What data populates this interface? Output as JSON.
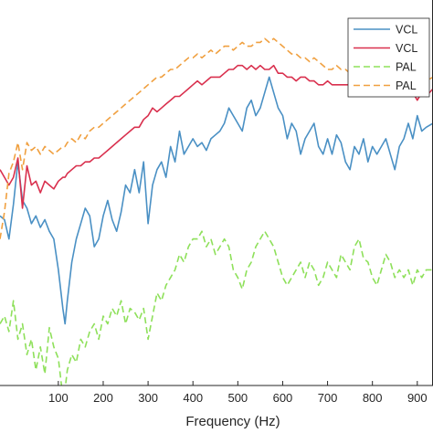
{
  "chart_data": {
    "type": "line",
    "title": "",
    "xlabel": "Frequency (Hz)",
    "ylabel": "",
    "xlim": [
      -30,
      935
    ],
    "ylim": [
      0,
      100
    ],
    "x_ticks": [
      100,
      200,
      300,
      400,
      500,
      600,
      700,
      800,
      900
    ],
    "grid": false,
    "legend": {
      "placement": "top-right"
    },
    "series": [
      {
        "name": "VCL",
        "color": "#4a90c4",
        "style": "solid",
        "x": [
          -30,
          -20,
          -10,
          0,
          10,
          20,
          30,
          40,
          50,
          60,
          70,
          80,
          90,
          100,
          110,
          115,
          120,
          130,
          140,
          150,
          160,
          170,
          180,
          190,
          200,
          210,
          220,
          230,
          240,
          250,
          260,
          270,
          280,
          290,
          300,
          310,
          320,
          330,
          340,
          350,
          360,
          370,
          380,
          390,
          400,
          410,
          420,
          430,
          440,
          450,
          460,
          470,
          480,
          490,
          500,
          510,
          520,
          530,
          540,
          550,
          560,
          570,
          580,
          590,
          600,
          610,
          620,
          630,
          640,
          650,
          660,
          670,
          680,
          690,
          700,
          710,
          720,
          730,
          740,
          750,
          760,
          770,
          780,
          790,
          800,
          810,
          820,
          830,
          840,
          850,
          860,
          870,
          880,
          890,
          900,
          910,
          920,
          935
        ],
        "values": [
          44,
          43,
          38,
          47,
          58,
          48,
          46,
          42,
          44,
          41,
          43,
          40,
          38,
          30,
          20,
          16,
          22,
          32,
          38,
          42,
          46,
          44,
          36,
          38,
          44,
          48,
          43,
          40,
          45,
          52,
          50,
          56,
          50,
          58,
          42,
          52,
          56,
          58,
          54,
          62,
          58,
          66,
          60,
          62,
          64,
          62,
          63,
          61,
          64,
          65,
          66,
          68,
          72,
          70,
          68,
          66,
          72,
          74,
          70,
          72,
          76,
          80,
          76,
          72,
          70,
          64,
          68,
          66,
          60,
          64,
          66,
          68,
          62,
          60,
          64,
          60,
          65,
          63,
          58,
          56,
          62,
          60,
          64,
          58,
          62,
          60,
          62,
          64,
          60,
          56,
          62,
          64,
          68,
          64,
          70,
          66,
          67,
          68
        ]
      },
      {
        "name": "VCL",
        "color": "#d9304e",
        "style": "solid",
        "x": [
          -30,
          -20,
          -10,
          0,
          10,
          20,
          30,
          40,
          50,
          60,
          70,
          80,
          90,
          100,
          110,
          115,
          120,
          130,
          140,
          150,
          160,
          170,
          180,
          190,
          200,
          210,
          220,
          230,
          240,
          250,
          260,
          270,
          280,
          290,
          300,
          310,
          320,
          330,
          340,
          350,
          360,
          370,
          380,
          390,
          400,
          410,
          420,
          430,
          440,
          450,
          460,
          470,
          480,
          490,
          500,
          510,
          520,
          530,
          540,
          550,
          560,
          570,
          580,
          590,
          600,
          610,
          620,
          630,
          640,
          650,
          660,
          670,
          680,
          690,
          700,
          710,
          720,
          730,
          740,
          750,
          760,
          770,
          780,
          790,
          800,
          810,
          820,
          830,
          840,
          850,
          860,
          870,
          880,
          890,
          900,
          910,
          920,
          935
        ],
        "values": [
          56,
          54,
          52,
          54,
          59,
          46,
          57,
          52,
          53,
          50,
          53,
          52,
          51,
          53,
          54,
          54,
          55,
          56,
          57,
          57,
          58,
          58,
          59,
          59,
          60,
          61,
          62,
          63,
          64,
          65,
          66,
          67,
          67,
          69,
          70,
          72,
          71,
          72,
          73,
          74,
          75,
          75,
          76,
          77,
          78,
          79,
          78,
          79,
          80,
          80,
          80,
          81,
          82,
          82,
          83,
          83,
          82,
          83,
          82,
          83,
          82,
          82,
          83,
          81,
          81,
          80,
          80,
          79,
          80,
          80,
          79,
          79,
          78,
          78,
          79,
          78,
          78,
          78,
          78,
          78,
          79,
          78,
          77,
          78,
          78,
          78,
          77,
          77,
          78,
          77,
          78,
          76,
          78,
          76,
          74,
          76,
          75,
          77
        ]
      },
      {
        "name": "PAL",
        "color": "#8ee05a",
        "style": "dashed",
        "x": [
          -30,
          -20,
          -10,
          0,
          10,
          20,
          30,
          40,
          50,
          60,
          70,
          80,
          90,
          100,
          110,
          115,
          120,
          130,
          140,
          150,
          160,
          170,
          180,
          190,
          200,
          210,
          220,
          230,
          240,
          250,
          260,
          270,
          280,
          290,
          300,
          310,
          320,
          330,
          340,
          350,
          360,
          370,
          380,
          390,
          400,
          410,
          420,
          430,
          440,
          450,
          460,
          470,
          480,
          490,
          500,
          510,
          520,
          530,
          540,
          550,
          560,
          570,
          580,
          590,
          600,
          610,
          620,
          630,
          640,
          650,
          660,
          670,
          680,
          690,
          700,
          710,
          720,
          730,
          740,
          750,
          760,
          770,
          780,
          790,
          800,
          810,
          820,
          830,
          840,
          850,
          860,
          870,
          880,
          890,
          900,
          910,
          920,
          935
        ],
        "values": [
          16,
          18,
          14,
          22,
          12,
          16,
          8,
          12,
          4,
          10,
          3,
          15,
          10,
          7,
          -3,
          -1,
          4,
          8,
          6,
          12,
          10,
          14,
          16,
          12,
          18,
          16,
          20,
          18,
          22,
          16,
          20,
          19,
          17,
          20,
          12,
          18,
          24,
          22,
          26,
          28,
          30,
          34,
          32,
          36,
          38,
          38,
          40,
          36,
          38,
          34,
          36,
          38,
          36,
          30,
          28,
          25,
          30,
          32,
          36,
          38,
          40,
          38,
          36,
          32,
          28,
          26,
          28,
          30,
          32,
          28,
          32,
          30,
          26,
          28,
          32,
          30,
          28,
          34,
          32,
          30,
          36,
          38,
          33,
          32,
          28,
          26,
          30,
          34,
          32,
          28,
          30,
          28,
          30,
          26,
          30,
          28,
          30,
          30
        ]
      },
      {
        "name": "PAL",
        "color": "#f0a040",
        "style": "dashed",
        "x": [
          -30,
          -20,
          -10,
          0,
          10,
          20,
          30,
          40,
          50,
          60,
          70,
          80,
          90,
          100,
          110,
          115,
          120,
          130,
          140,
          150,
          160,
          170,
          180,
          190,
          200,
          210,
          220,
          230,
          240,
          250,
          260,
          270,
          280,
          290,
          300,
          310,
          320,
          330,
          340,
          350,
          360,
          370,
          380,
          390,
          400,
          410,
          420,
          430,
          440,
          450,
          460,
          470,
          480,
          490,
          500,
          510,
          520,
          530,
          540,
          550,
          560,
          570,
          580,
          590,
          600,
          610,
          620,
          630,
          640,
          650,
          660,
          670,
          680,
          690,
          700,
          710,
          720,
          730,
          740,
          750,
          760,
          770,
          780,
          790,
          800,
          810,
          820,
          830,
          840,
          850,
          860,
          870,
          880,
          890,
          900,
          910,
          920,
          935
        ],
        "values": [
          38,
          45,
          55,
          58,
          63,
          56,
          63,
          61,
          62,
          60,
          62,
          61,
          60,
          61,
          62,
          62,
          63,
          64,
          63,
          65,
          64,
          66,
          67,
          67,
          68,
          69,
          70,
          71,
          72,
          73,
          74,
          75,
          76,
          77,
          78,
          79,
          80,
          80,
          81,
          82,
          82,
          83,
          84,
          85,
          85,
          86,
          85,
          86,
          87,
          86,
          87,
          88,
          88,
          87,
          88,
          89,
          88,
          88,
          89,
          89,
          90,
          89,
          90,
          89,
          88,
          87,
          86,
          86,
          85,
          85,
          84,
          85,
          84,
          83,
          82,
          82,
          83,
          82,
          82,
          81,
          82,
          81,
          81,
          82,
          81,
          82,
          81,
          82,
          81,
          81,
          80,
          81,
          80,
          81,
          80,
          81,
          79,
          80
        ]
      }
    ]
  }
}
